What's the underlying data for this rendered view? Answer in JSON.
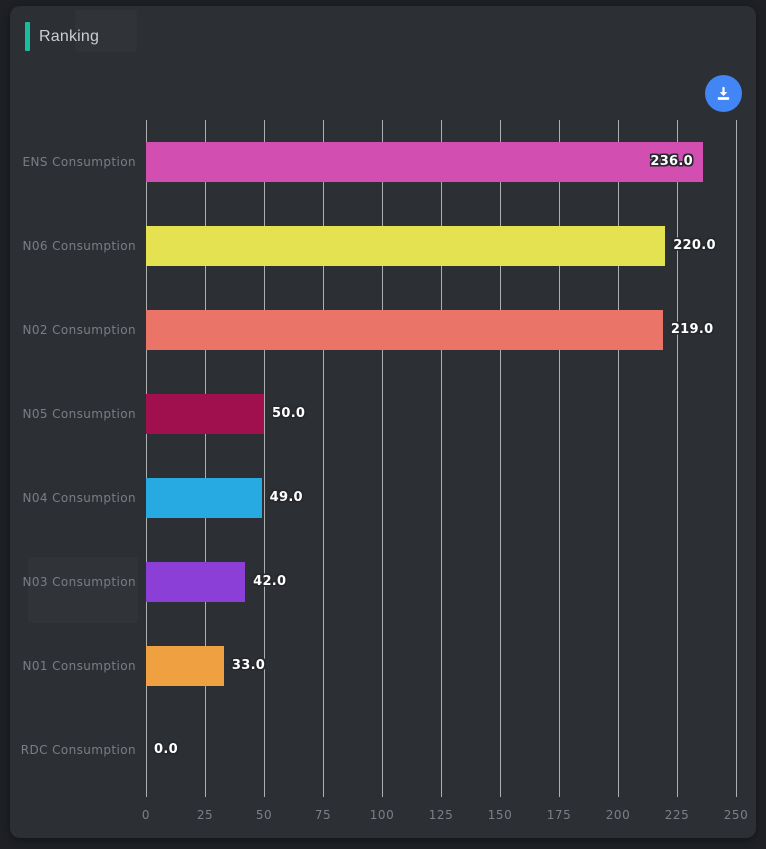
{
  "panel": {
    "title": "Ranking"
  },
  "colors": {
    "outer_background": "#1e2026",
    "panel_background": "#2c2f34",
    "accent": "#18bd9d",
    "download_button": "#4285f4",
    "gridline": "rgba(255,255,255,0.62)",
    "category_label": "#7a7e84",
    "tick_label": "#7c8086",
    "value_text": "#ffffff"
  },
  "icons": {
    "download": "download-icon"
  },
  "chart_data": {
    "type": "bar",
    "orientation": "horizontal",
    "title": "Ranking",
    "xlabel": "",
    "ylabel": "",
    "categories": [
      "ENS Consumption",
      "N06 Consumption",
      "N02 Consumption",
      "N05 Consumption",
      "N04 Consumption",
      "N03 Consumption",
      "N01 Consumption",
      "RDC Consumption"
    ],
    "values": [
      236.0,
      220.0,
      219.0,
      50.0,
      49.0,
      42.0,
      33.0,
      0.0
    ],
    "value_labels": [
      "236.0",
      "220.0",
      "219.0",
      "50.0",
      "49.0",
      "42.0",
      "33.0",
      "0.0"
    ],
    "bar_colors": [
      "#d24fb1",
      "#e5e251",
      "#e97467",
      "#a00f4e",
      "#27a9e1",
      "#8c3fd6",
      "#efa041",
      "transparent"
    ],
    "x_ticks": [
      0,
      25,
      50,
      75,
      100,
      125,
      150,
      175,
      200,
      225,
      250
    ],
    "xlim": [
      0,
      250
    ],
    "grid": true,
    "legend": false
  }
}
